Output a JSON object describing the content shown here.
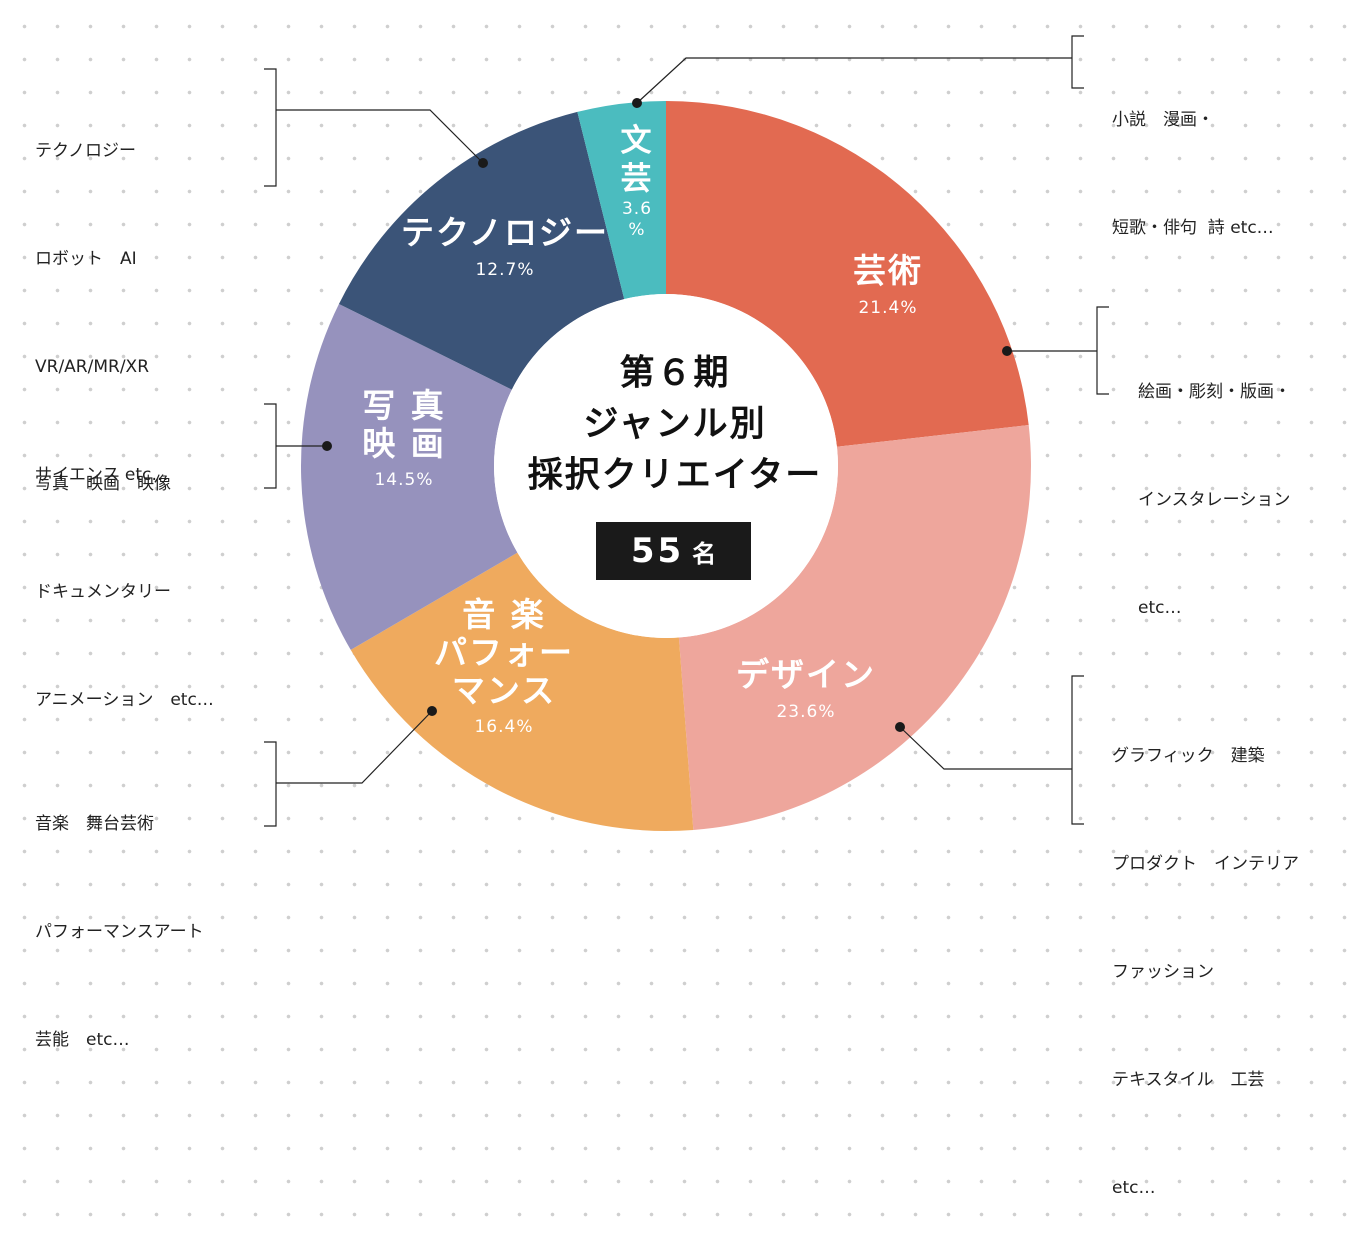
{
  "chart_data": {
    "type": "donut",
    "center_title_lines": [
      "第６期",
      "ジャンル別",
      "採択クリエイター"
    ],
    "total_label": "55",
    "total_unit": "名",
    "slices": [
      {
        "name": "芸術",
        "value": 21.4,
        "pct_label": "21.4%",
        "color": "#e26a51",
        "examples": [
          "絵画・彫刻・版画・",
          "インスタレーション",
          "etc…"
        ]
      },
      {
        "name": "デザイン",
        "value": 23.6,
        "pct_label": "23.6%",
        "color": "#eea69c",
        "examples": [
          "グラフィック　建築",
          "プロダクト　インテリア",
          "ファッション",
          "テキスタイル　工芸",
          "etc…"
        ]
      },
      {
        "name": "音楽パフォーマンス",
        "name_lines": [
          "音 楽",
          "パフォー",
          "マンス"
        ],
        "value": 16.4,
        "pct_label": "16.4%",
        "color": "#efaa5e",
        "examples": [
          "音楽　舞台芸術",
          "パフォーマンスアート",
          "芸能　etc…"
        ]
      },
      {
        "name": "写真映画",
        "name_lines": [
          "写 真",
          "映 画"
        ],
        "value": 14.5,
        "pct_label": "14.5%",
        "color": "#9692bd",
        "examples": [
          "写真　映画　映像",
          "ドキュメンタリー",
          "アニメーション　etc…"
        ]
      },
      {
        "name": "テクノロジー",
        "value": 12.7,
        "pct_label": "12.7%",
        "color": "#3b5478",
        "examples": [
          "テクノロジー",
          "ロボット　AI",
          "VR/AR/MR/XR",
          "サイエンス etc…"
        ]
      },
      {
        "name": "文芸",
        "name_lines": [
          "文",
          "芸"
        ],
        "value": 3.6,
        "pct_label_lines": [
          "3.6",
          "%"
        ],
        "color": "#4bbcbf",
        "examples": [
          "小説　漫画・",
          "短歌・俳句  詩 etc…"
        ]
      }
    ]
  }
}
